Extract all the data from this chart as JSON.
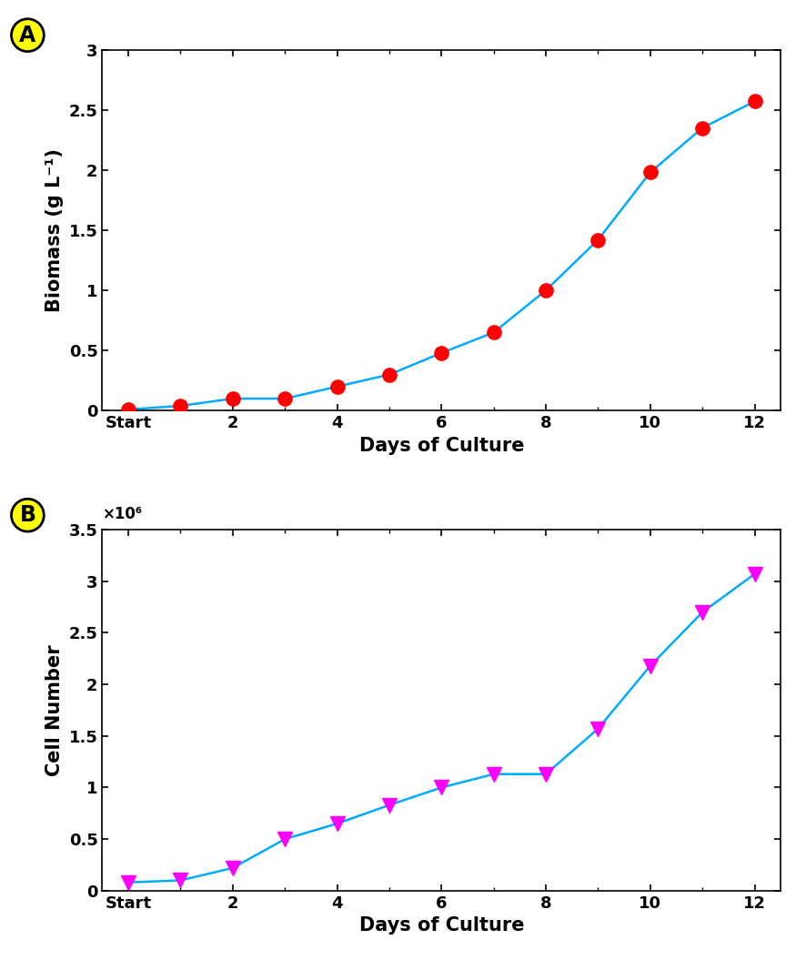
{
  "panel_a": {
    "x_tick_positions": [
      0,
      2,
      4,
      6,
      8,
      10,
      12
    ],
    "x_tick_labels": [
      "Start",
      "2",
      "4",
      "6",
      "8",
      "10",
      "12"
    ],
    "x_values": [
      0,
      1,
      2,
      3,
      4,
      5,
      6,
      7,
      8,
      9,
      10,
      11,
      12
    ],
    "y_values": [
      0.01,
      0.04,
      0.1,
      0.1,
      0.2,
      0.3,
      0.48,
      0.65,
      1.0,
      1.42,
      1.98,
      2.35,
      2.57
    ],
    "ylabel": "Biomass (g L⁻¹)",
    "xlabel": "Days of Culture",
    "ylim": [
      0,
      3
    ],
    "xlim": [
      -0.5,
      12.5
    ],
    "yticks": [
      0,
      0.5,
      1.0,
      1.5,
      2.0,
      2.5,
      3.0
    ],
    "ytick_labels": [
      "0",
      "0.5",
      "1",
      "1.5",
      "2",
      "2.5",
      "3"
    ],
    "line_color": "#00AAFF",
    "marker_color": "#FF0000",
    "marker": "o",
    "label": "A"
  },
  "panel_b": {
    "x_tick_positions": [
      0,
      2,
      4,
      6,
      8,
      10,
      12
    ],
    "x_tick_labels": [
      "Start",
      "2",
      "4",
      "6",
      "8",
      "10",
      "12"
    ],
    "x_values": [
      0,
      1,
      2,
      3,
      4,
      5,
      6,
      7,
      8,
      9,
      10,
      11,
      12
    ],
    "y_values": [
      0.08,
      0.1,
      0.22,
      0.5,
      0.65,
      0.83,
      1.0,
      1.13,
      1.13,
      1.57,
      2.18,
      2.7,
      3.07
    ],
    "ylabel": "Cell Number",
    "xlabel": "Days of Culture",
    "ylim": [
      0,
      3.5
    ],
    "xlim": [
      -0.5,
      12.5
    ],
    "yticks": [
      0,
      0.5,
      1.0,
      1.5,
      2.0,
      2.5,
      3.0,
      3.5
    ],
    "ytick_labels": [
      "0",
      "0.5",
      "1",
      "1.5",
      "2",
      "2.5",
      "3",
      "3.5"
    ],
    "line_color": "#00AAFF",
    "marker_color": "#FF00FF",
    "marker": "v",
    "label": "B",
    "scale_label": "×10⁶"
  },
  "background_color": "#FFFFFF",
  "tick_fontsize": 13,
  "axis_label_fontsize": 15,
  "badge_color": "#FFFF00",
  "badge_text_color": "#000000",
  "line_width": 1.8,
  "marker_size": 11
}
